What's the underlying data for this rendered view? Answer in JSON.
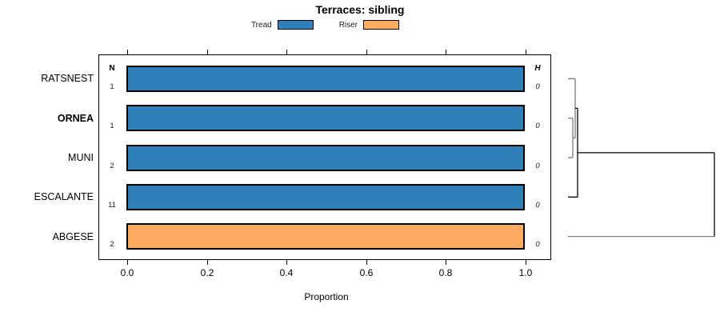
{
  "title": "Terraces: sibling",
  "legend": [
    {
      "label": "Tread",
      "color": "#2f7fb8"
    },
    {
      "label": "Riser",
      "color": "#fdab61"
    }
  ],
  "columns": {
    "n_header": "N",
    "h_header": "H"
  },
  "rows": [
    {
      "label": "RATSNEST",
      "n": "1",
      "h": "0",
      "series": "Tread",
      "value": 1.0
    },
    {
      "label": "ORNEA",
      "n": "1",
      "h": "0",
      "series": "Tread",
      "value": 1.0
    },
    {
      "label": "MUNI",
      "n": "2",
      "h": "0",
      "series": "Tread",
      "value": 1.0
    },
    {
      "label": "ESCALANTE",
      "n": "11",
      "h": "0",
      "series": "Tread",
      "value": 1.0
    },
    {
      "label": "ABGESE",
      "n": "2",
      "h": "0",
      "series": "Riser",
      "value": 1.0
    }
  ],
  "axis": {
    "ticks": [
      "0.0",
      "0.2",
      "0.4",
      "0.6",
      "0.8",
      "1.0"
    ],
    "xlabel": "Proportion"
  },
  "chart_data": {
    "type": "bar",
    "orientation": "horizontal",
    "title": "Terraces: sibling",
    "xlabel": "Proportion",
    "xlim": [
      0,
      1
    ],
    "x_ticks": [
      0.0,
      0.2,
      0.4,
      0.6,
      0.8,
      1.0
    ],
    "categories": [
      "RATSNEST",
      "ORNEA",
      "MUNI",
      "ESCALANTE",
      "ABGESE"
    ],
    "series": [
      {
        "name": "Tread",
        "color": "#2f7fb8",
        "values": [
          1.0,
          1.0,
          1.0,
          1.0,
          0.0
        ]
      },
      {
        "name": "Riser",
        "color": "#fdab61",
        "values": [
          0.0,
          0.0,
          0.0,
          0.0,
          1.0
        ]
      }
    ],
    "n_column": {
      "header": "N",
      "values": [
        1,
        1,
        2,
        11,
        2
      ]
    },
    "h_column": {
      "header": "H",
      "values": [
        0,
        0,
        0,
        0,
        0
      ]
    },
    "highlighted_category": "ORNEA",
    "legend_position": "top",
    "grid": false,
    "dendrogram": {
      "position": "right",
      "merges": [
        {
          "joins": [
            "ORNEA",
            "MUNI"
          ],
          "relative_height": "near-zero"
        },
        {
          "joins": [
            "RATSNEST",
            "(ORNEA,MUNI)"
          ],
          "relative_height": "near-zero"
        },
        {
          "joins": [
            "(RATSNEST,ORNEA,MUNI)",
            "ESCALANTE"
          ],
          "relative_height": "near-zero"
        },
        {
          "joins": [
            "(RATSNEST,ORNEA,MUNI,ESCALANTE)",
            "ABGESE"
          ],
          "relative_height": "max"
        }
      ]
    }
  }
}
